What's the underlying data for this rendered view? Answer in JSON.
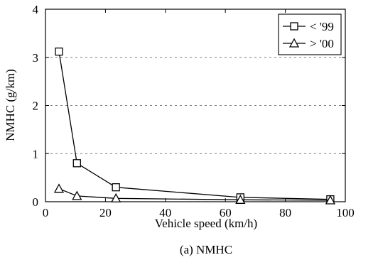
{
  "chart_data": {
    "type": "line",
    "xlabel": "Vehicle speed (km/h)",
    "ylabel": "NMHC (g/km)",
    "caption": "(a) NMHC",
    "xlim": [
      0,
      100
    ],
    "ylim": [
      0,
      4
    ],
    "xticks": [
      0,
      20,
      40,
      60,
      80,
      100
    ],
    "yticks": [
      0,
      1,
      2,
      3,
      4
    ],
    "grid": "dashed horizontal",
    "legend_position": "top-right",
    "series": [
      {
        "name": "< '99",
        "marker": "square",
        "x": [
          4.5,
          10.5,
          23.5,
          65,
          95
        ],
        "y": [
          3.12,
          0.8,
          0.3,
          0.09,
          0.05
        ]
      },
      {
        "name": "> '00",
        "marker": "triangle",
        "x": [
          4.5,
          10.5,
          23.5,
          65,
          95
        ],
        "y": [
          0.27,
          0.12,
          0.07,
          0.04,
          0.03
        ]
      }
    ]
  }
}
